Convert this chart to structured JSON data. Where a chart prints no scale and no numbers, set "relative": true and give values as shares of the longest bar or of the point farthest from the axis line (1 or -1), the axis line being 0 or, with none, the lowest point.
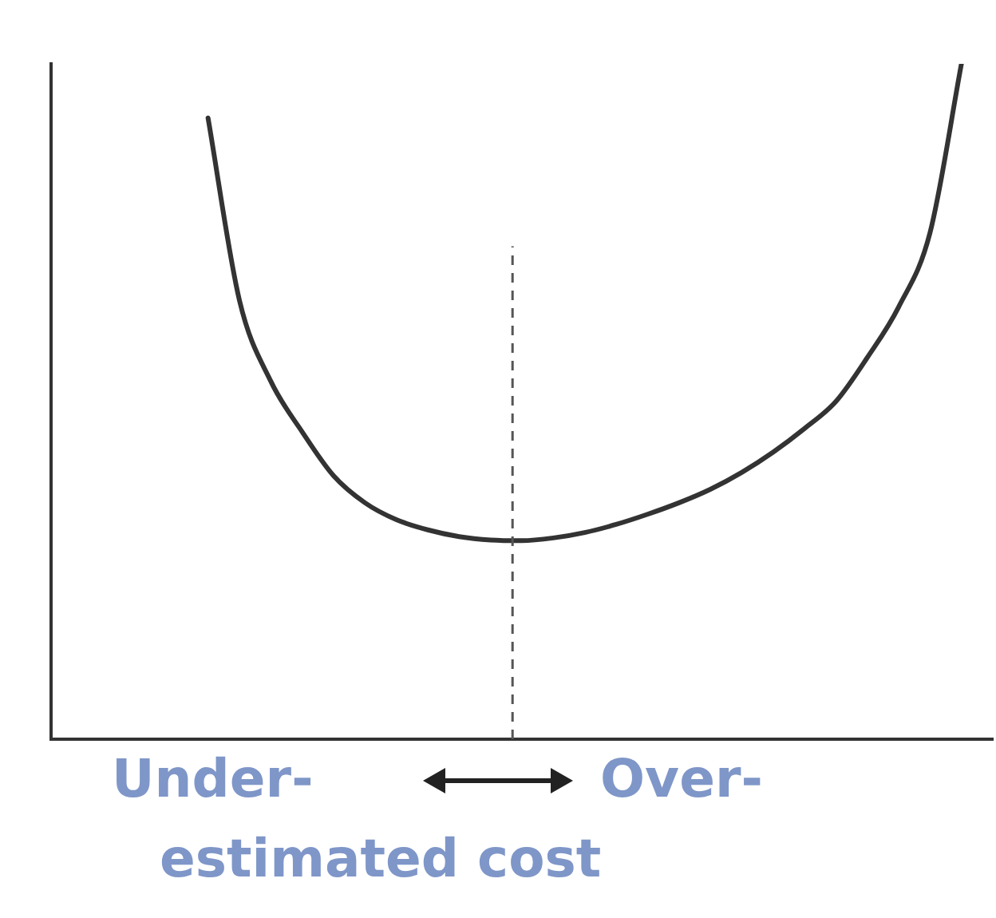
{
  "chart_data": {
    "type": "line",
    "relative": true,
    "grid": false,
    "legend": false,
    "marker": "none",
    "line_style": "solid",
    "categories": [
      null,
      null,
      null,
      null,
      null,
      null,
      null,
      null,
      null,
      null,
      null,
      null,
      null,
      null,
      null,
      null,
      null,
      null,
      null,
      null,
      null,
      null,
      null,
      null,
      null,
      null,
      null,
      null,
      null,
      null,
      null
    ],
    "annotations": [
      "Under-",
      "Over-",
      "estimated cost"
    ],
    "series": [
      {
        "color": "#333333",
        "values": [
          null,
          null,
          null,
          null,
          null,
          0.92,
          0.65,
          0.53,
          0.455,
          0.39,
          0.35,
          0.325,
          0.31,
          0.3,
          0.295,
          0.294,
          0.298,
          0.306,
          0.318,
          0.333,
          0.35,
          0.37,
          0.395,
          0.425,
          0.46,
          0.5,
          0.565,
          0.64,
          0.75,
          1,
          null
        ]
      }
    ]
  }
}
